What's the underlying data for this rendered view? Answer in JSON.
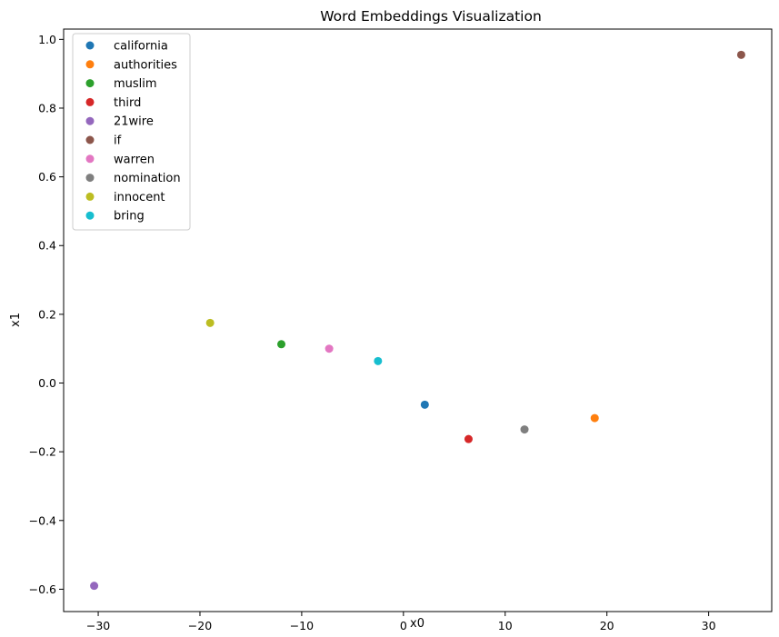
{
  "chart_data": {
    "type": "scatter",
    "title": "Word Embeddings Visualization",
    "xlabel": "x0",
    "ylabel": "x1",
    "xlim": [
      -33.4,
      36.2
    ],
    "ylim": [
      -0.665,
      1.03
    ],
    "xticks": [
      -30,
      -20,
      -10,
      0,
      10,
      20,
      30
    ],
    "yticks": [
      -0.6,
      -0.4,
      -0.2,
      0.0,
      0.2,
      0.4,
      0.6,
      0.8,
      1.0
    ],
    "xtick_labels": [
      "−30",
      "−20",
      "−10",
      "0",
      "10",
      "20",
      "30"
    ],
    "ytick_labels": [
      "−0.6",
      "−0.4",
      "−0.2",
      "0.0",
      "0.2",
      "0.4",
      "0.6",
      "0.8",
      "1.0"
    ],
    "grid": false,
    "legend_position": "top-left",
    "series": [
      {
        "name": "california",
        "color": "#1f77b4",
        "x": 2.1,
        "y": -0.063
      },
      {
        "name": "authorities",
        "color": "#ff7f0e",
        "x": 18.8,
        "y": -0.102
      },
      {
        "name": "muslim",
        "color": "#2ca02c",
        "x": -12.0,
        "y": 0.113
      },
      {
        "name": "third",
        "color": "#d62728",
        "x": 6.4,
        "y": -0.163
      },
      {
        "name": "21wire",
        "color": "#9467bd",
        "x": -30.4,
        "y": -0.59
      },
      {
        "name": "if",
        "color": "#8c564b",
        "x": 33.2,
        "y": 0.955
      },
      {
        "name": "warren",
        "color": "#e377c2",
        "x": -7.3,
        "y": 0.1
      },
      {
        "name": "nomination",
        "color": "#7f7f7f",
        "x": 11.9,
        "y": -0.135
      },
      {
        "name": "innocent",
        "color": "#bcbd22",
        "x": -19.0,
        "y": 0.175
      },
      {
        "name": "bring",
        "color": "#17becf",
        "x": -2.5,
        "y": 0.064
      }
    ]
  }
}
